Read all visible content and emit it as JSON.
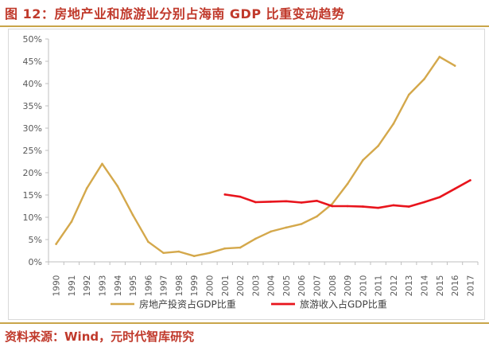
{
  "title": "图 12：房地产业和旅游业分别占海南 GDP 比重变动趋势",
  "source": "资料来源：Wind，元时代智库研究",
  "colors": {
    "accent": "#c0392b",
    "rule": "#c9a54a",
    "series_realestate": "#d4a84b",
    "series_tourism": "#e8141c",
    "axis": "#bfbfbf",
    "tick_text": "#595959"
  },
  "chart_data": {
    "type": "line",
    "title": "房地产业和旅游业分别占海南 GDP 比重变动趋势",
    "xlabel": "",
    "ylabel": "",
    "x": [
      "1990",
      "1991",
      "1992",
      "1993",
      "1994",
      "1995",
      "1996",
      "1997",
      "1998",
      "1999",
      "2000",
      "2001",
      "2002",
      "2003",
      "2004",
      "2005",
      "2006",
      "2007",
      "2008",
      "2009",
      "2010",
      "2011",
      "2012",
      "2013",
      "2014",
      "2015",
      "2016",
      "2017"
    ],
    "ylim": [
      0,
      50
    ],
    "ytick_labels": [
      "0%",
      "5%",
      "10%",
      "15%",
      "20%",
      "25%",
      "30%",
      "35%",
      "40%",
      "45%",
      "50%"
    ],
    "grid": false,
    "legend_position": "bottom",
    "series": [
      {
        "name": "房地产投资占GDP比重",
        "values": [
          4.0,
          9.0,
          16.5,
          22.0,
          17.0,
          10.5,
          4.5,
          2.0,
          2.3,
          1.3,
          2.0,
          3.0,
          3.2,
          5.2,
          6.8,
          7.7,
          8.5,
          10.2,
          13.0,
          17.5,
          22.8,
          26.0,
          31.0,
          37.5,
          41.0,
          46.0,
          44.0,
          null
        ],
        "color": "#d4a84b"
      },
      {
        "name": "旅游收入占GDP比重",
        "values": [
          null,
          null,
          null,
          null,
          null,
          null,
          null,
          null,
          null,
          null,
          null,
          15.1,
          14.6,
          13.4,
          13.5,
          13.6,
          13.3,
          13.7,
          12.5,
          12.5,
          12.4,
          12.1,
          12.7,
          12.4,
          13.4,
          14.5,
          16.4,
          18.3
        ],
        "color": "#e8141c"
      }
    ]
  }
}
